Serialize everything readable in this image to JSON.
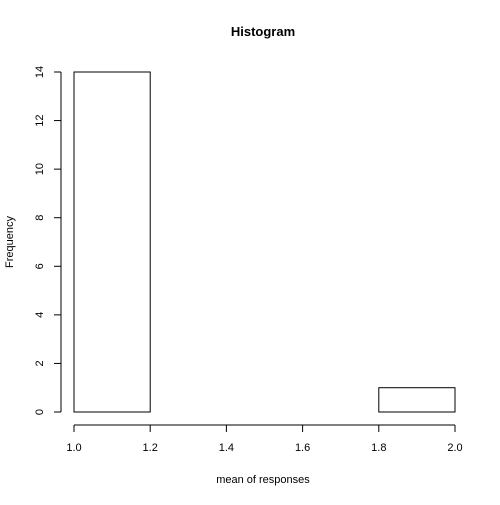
{
  "chart_data": {
    "type": "bar",
    "title": "Histogram",
    "xlabel": "mean of responses",
    "ylabel": "Frequency",
    "bins": [
      {
        "x0": 1.0,
        "x1": 1.2,
        "count": 14
      },
      {
        "x0": 1.2,
        "x1": 1.4,
        "count": 0
      },
      {
        "x0": 1.4,
        "x1": 1.6,
        "count": 0
      },
      {
        "x0": 1.6,
        "x1": 1.8,
        "count": 0
      },
      {
        "x0": 1.8,
        "x1": 2.0,
        "count": 1
      }
    ],
    "xlim": [
      1.0,
      2.0
    ],
    "ylim": [
      0,
      14
    ],
    "xticks": [
      "1.0",
      "1.2",
      "1.4",
      "1.6",
      "1.8",
      "2.0"
    ],
    "yticks": [
      "0",
      "2",
      "4",
      "6",
      "8",
      "10",
      "12",
      "14"
    ],
    "grid": false,
    "legend": "none"
  }
}
